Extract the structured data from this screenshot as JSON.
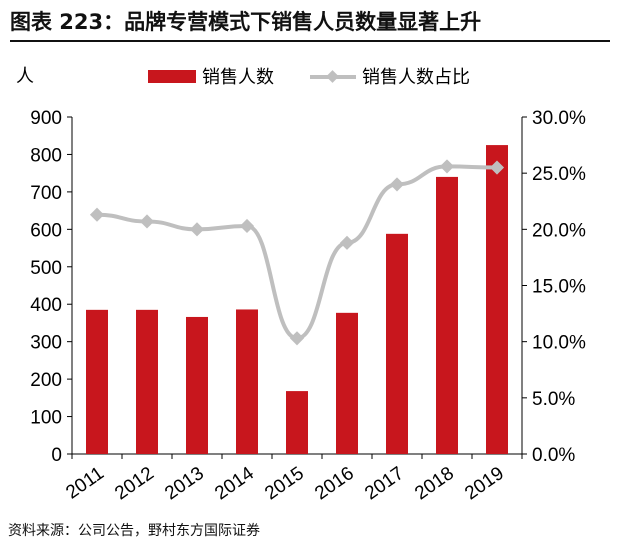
{
  "title": "图表 223：品牌专营模式下销售人员数量显著上升",
  "source": "资料来源：公司公告，野村东方国际证券",
  "chart_data": {
    "type": "bar+line",
    "categories": [
      "2011",
      "2012",
      "2013",
      "2014",
      "2015",
      "2016",
      "2017",
      "2018",
      "2019"
    ],
    "left_axis_unit": "人",
    "ylim_left": [
      0,
      900
    ],
    "yticks_left": [
      "0",
      "100",
      "200",
      "300",
      "400",
      "500",
      "600",
      "700",
      "800",
      "900"
    ],
    "ylim_right": [
      0,
      30
    ],
    "yticks_right": [
      "0.0%",
      "5.0%",
      "10.0%",
      "15.0%",
      "20.0%",
      "25.0%",
      "30.0%"
    ],
    "legend_position": "top",
    "series": [
      {
        "name": "销售人数",
        "type": "bar",
        "axis": "left",
        "color": "#C8161D",
        "values": [
          385,
          385,
          366,
          386,
          168,
          377,
          588,
          740,
          825
        ]
      },
      {
        "name": "销售人数占比",
        "type": "line",
        "axis": "right",
        "color": "#BFBFBF",
        "values": [
          21.3,
          20.7,
          20.0,
          20.3,
          10.3,
          18.8,
          24.0,
          25.6,
          25.5
        ]
      }
    ]
  }
}
